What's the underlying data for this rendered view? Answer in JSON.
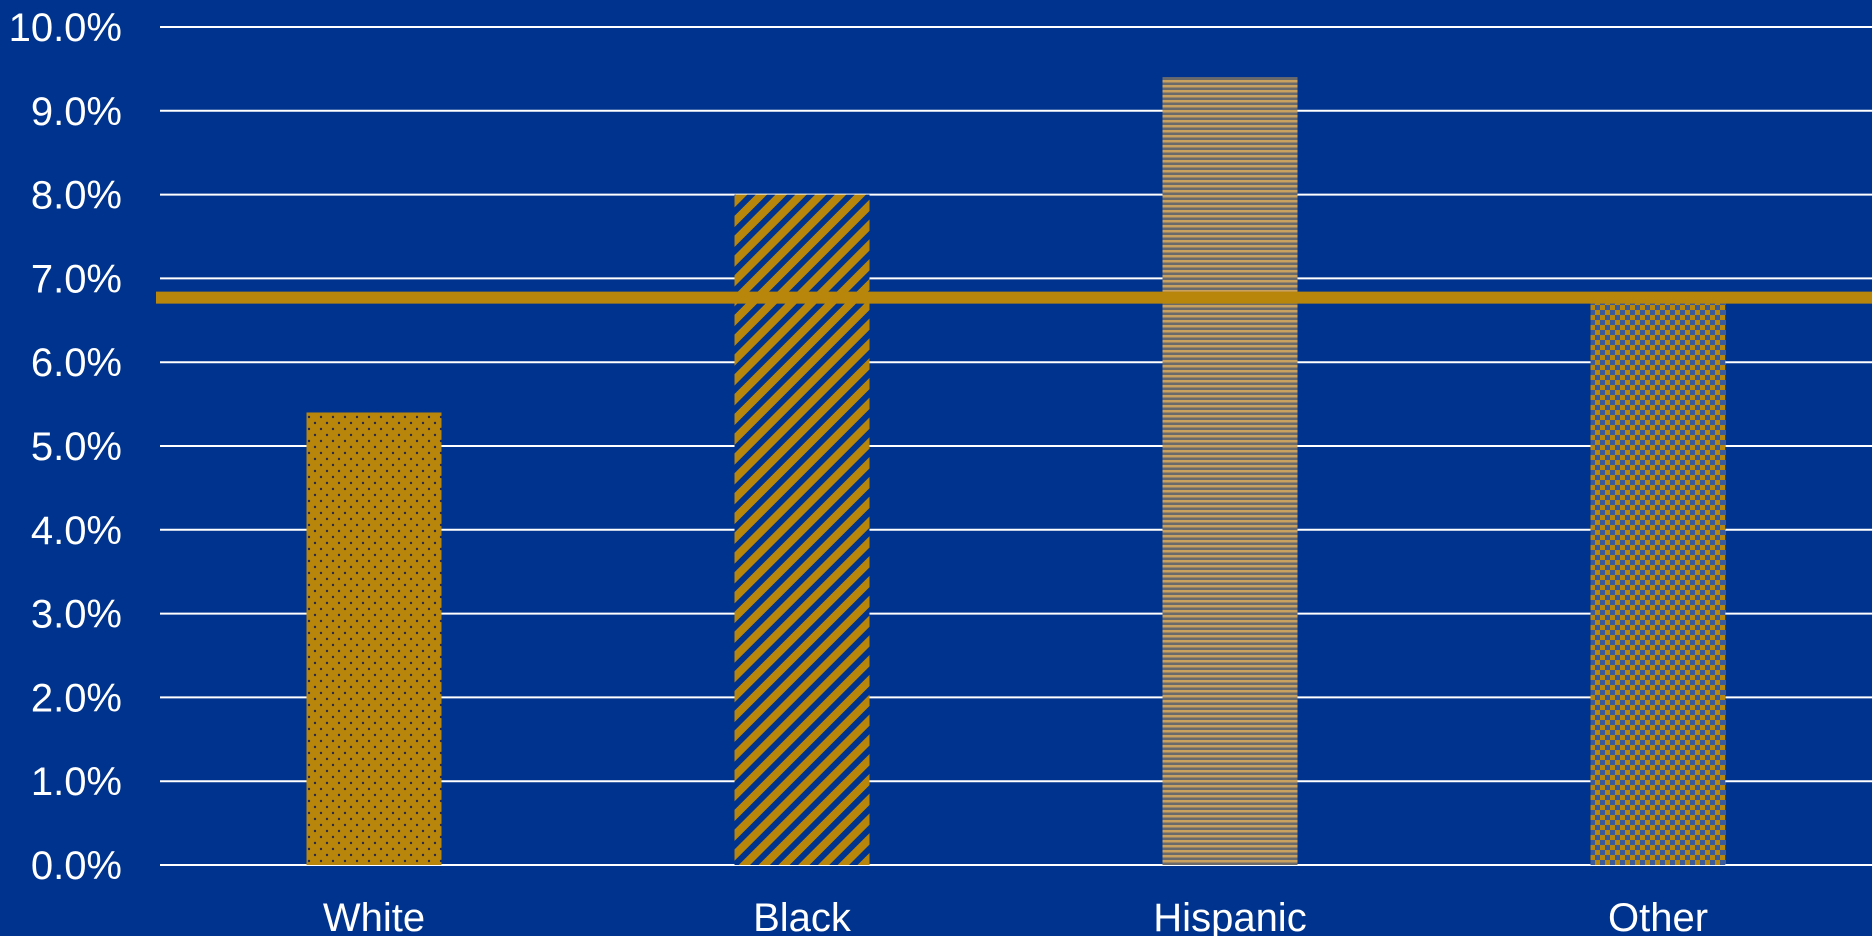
{
  "chart_data": {
    "type": "bar",
    "categories": [
      "White",
      "Black",
      "Hispanic",
      "Other"
    ],
    "values": [
      5.4,
      8.0,
      9.4,
      6.7
    ],
    "reference_line": 6.77,
    "ylim": [
      0,
      10
    ],
    "yticks": [
      "0.0%",
      "1.0%",
      "2.0%",
      "3.0%",
      "4.0%",
      "5.0%",
      "6.0%",
      "7.0%",
      "8.0%",
      "9.0%",
      "10.0%"
    ],
    "patterns": [
      "dots",
      "diagonal-stripes",
      "horizontal-lines",
      "checker"
    ],
    "grid": true,
    "title": "",
    "xlabel": "",
    "ylabel": ""
  },
  "colors": {
    "background": "#00338d",
    "bar": "#b8860b",
    "grid": "#ffffff",
    "text": "#ffffff"
  }
}
